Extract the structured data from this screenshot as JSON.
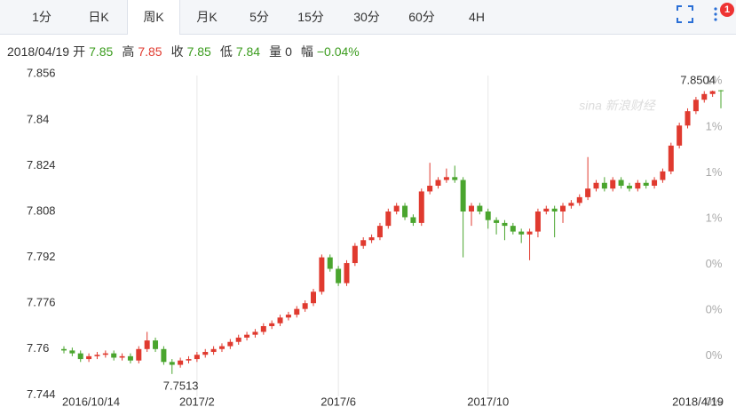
{
  "toolbar": {
    "tabs": [
      "1分",
      "日K",
      "周K",
      "月K",
      "5分",
      "15分",
      "30分",
      "60分",
      "4H"
    ],
    "active": 2,
    "badge": "1"
  },
  "info": {
    "date": "2018/04/19",
    "items": [
      {
        "label": "开",
        "value": "7.85",
        "color": "#3b9c1e"
      },
      {
        "label": "高",
        "value": "7.85",
        "color": "#e03a2f"
      },
      {
        "label": "收",
        "value": "7.85",
        "color": "#3b9c1e"
      },
      {
        "label": "低",
        "value": "7.84",
        "color": "#3b9c1e"
      },
      {
        "label": "量",
        "value": "0",
        "color": "#333333"
      },
      {
        "label": "幅",
        "value": "−0.04%",
        "color": "#3b9c1e"
      }
    ]
  },
  "chart_data": {
    "type": "candlestick",
    "watermark": "sina 新浪财经",
    "categories": [
      "2016/10/14",
      null,
      null,
      null,
      null,
      null,
      null,
      null,
      null,
      null,
      null,
      null,
      null,
      null,
      null,
      null,
      "2017/2",
      null,
      null,
      null,
      null,
      null,
      null,
      null,
      null,
      null,
      null,
      null,
      null,
      null,
      null,
      null,
      null,
      "2017/6",
      null,
      null,
      null,
      null,
      null,
      null,
      null,
      null,
      null,
      null,
      null,
      null,
      null,
      null,
      null,
      null,
      null,
      "2017/10",
      null,
      null,
      null,
      null,
      null,
      null,
      null,
      null,
      null,
      null,
      null,
      null,
      null,
      null,
      null,
      null,
      null,
      null,
      null,
      null,
      null,
      null,
      null,
      null,
      null,
      null,
      null,
      "2018/4/19"
    ],
    "open": [
      7.76,
      7.7595,
      7.7585,
      7.7565,
      7.7575,
      7.758,
      7.7585,
      7.757,
      7.7575,
      7.756,
      7.76,
      7.763,
      7.76,
      7.7555,
      7.7545,
      7.756,
      7.7565,
      7.758,
      7.759,
      7.76,
      7.761,
      7.7625,
      7.764,
      7.765,
      7.766,
      7.768,
      7.769,
      7.771,
      7.772,
      7.774,
      7.776,
      7.78,
      7.792,
      7.788,
      7.783,
      7.79,
      7.796,
      7.798,
      7.799,
      7.803,
      7.808,
      7.81,
      7.806,
      7.804,
      7.815,
      7.817,
      7.819,
      7.82,
      7.819,
      7.808,
      7.81,
      7.808,
      7.805,
      7.804,
      7.803,
      7.801,
      7.8,
      7.801,
      7.808,
      7.809,
      7.808,
      7.81,
      7.811,
      7.813,
      7.816,
      7.818,
      7.816,
      7.819,
      7.817,
      7.816,
      7.818,
      7.817,
      7.819,
      7.822,
      7.831,
      7.838,
      7.843,
      7.847,
      7.849,
      7.8503
    ],
    "high": [
      7.761,
      7.7605,
      7.7595,
      7.7585,
      7.759,
      7.7595,
      7.7595,
      7.7585,
      7.7585,
      7.761,
      7.766,
      7.764,
      7.761,
      7.7565,
      7.757,
      7.7575,
      7.759,
      7.76,
      7.761,
      7.762,
      7.7635,
      7.765,
      7.766,
      7.767,
      7.769,
      7.77,
      7.772,
      7.773,
      7.775,
      7.777,
      7.781,
      7.793,
      7.793,
      7.789,
      7.791,
      7.797,
      7.799,
      7.8,
      7.804,
      7.809,
      7.811,
      7.811,
      7.807,
      7.816,
      7.825,
      7.82,
      7.823,
      7.824,
      7.82,
      7.811,
      7.811,
      7.809,
      7.806,
      7.805,
      7.804,
      7.802,
      7.802,
      7.809,
      7.81,
      7.81,
      7.811,
      7.812,
      7.814,
      7.827,
      7.819,
      7.82,
      7.82,
      7.82,
      7.818,
      7.819,
      7.819,
      7.82,
      7.823,
      7.832,
      7.839,
      7.844,
      7.848,
      7.85,
      7.8502,
      7.8504
    ],
    "low": [
      7.7585,
      7.7575,
      7.7555,
      7.7555,
      7.7565,
      7.757,
      7.756,
      7.756,
      7.755,
      7.755,
      7.759,
      7.759,
      7.7545,
      7.7513,
      7.7535,
      7.755,
      7.7555,
      7.757,
      7.758,
      7.759,
      7.76,
      7.7615,
      7.763,
      7.764,
      7.765,
      7.767,
      7.768,
      7.77,
      7.771,
      7.773,
      7.775,
      7.779,
      7.787,
      7.782,
      7.782,
      7.789,
      7.795,
      7.797,
      7.798,
      7.802,
      7.807,
      7.805,
      7.803,
      7.803,
      7.814,
      7.816,
      7.818,
      7.818,
      7.792,
      7.803,
      7.807,
      7.802,
      7.8,
      7.798,
      7.8,
      7.797,
      7.791,
      7.799,
      7.807,
      7.799,
      7.804,
      7.809,
      7.81,
      7.812,
      7.815,
      7.815,
      7.815,
      7.816,
      7.815,
      7.815,
      7.816,
      7.816,
      7.818,
      7.821,
      7.83,
      7.837,
      7.842,
      7.846,
      7.848,
      7.844
    ],
    "close": [
      7.7595,
      7.7585,
      7.7565,
      7.7575,
      7.758,
      7.7585,
      7.757,
      7.7575,
      7.756,
      7.76,
      7.763,
      7.76,
      7.7555,
      7.7545,
      7.756,
      7.7565,
      7.758,
      7.759,
      7.76,
      7.761,
      7.7625,
      7.764,
      7.765,
      7.766,
      7.768,
      7.769,
      7.771,
      7.772,
      7.774,
      7.776,
      7.78,
      7.792,
      7.788,
      7.783,
      7.79,
      7.796,
      7.798,
      7.799,
      7.803,
      7.808,
      7.81,
      7.806,
      7.804,
      7.815,
      7.817,
      7.819,
      7.82,
      7.819,
      7.808,
      7.81,
      7.808,
      7.805,
      7.804,
      7.803,
      7.801,
      7.8,
      7.801,
      7.808,
      7.809,
      7.808,
      7.81,
      7.811,
      7.813,
      7.816,
      7.818,
      7.816,
      7.819,
      7.817,
      7.816,
      7.818,
      7.817,
      7.819,
      7.822,
      7.831,
      7.838,
      7.843,
      7.847,
      7.849,
      7.85,
      7.85
    ],
    "up_color": "#e03a2f",
    "down_color": "#4aa52e",
    "annotations": [
      "7.8504",
      "7.7513"
    ],
    "ylim": [
      7.7435,
      7.857
    ],
    "yticks": [
      {
        "value": 7.744,
        "label": "7.744"
      },
      {
        "value": 7.76,
        "label": "7.76"
      },
      {
        "value": 7.776,
        "label": "7.776"
      },
      {
        "value": 7.792,
        "label": "7.792"
      },
      {
        "value": 7.808,
        "label": "7.808"
      },
      {
        "value": 7.824,
        "label": "7.824"
      },
      {
        "value": 7.84,
        "label": "7.84"
      },
      {
        "value": 7.856,
        "label": "7.856"
      }
    ],
    "y2_labels": [
      "0%",
      "0%",
      "0%",
      "0%",
      "1%",
      "1%",
      "1%",
      "1%"
    ]
  }
}
